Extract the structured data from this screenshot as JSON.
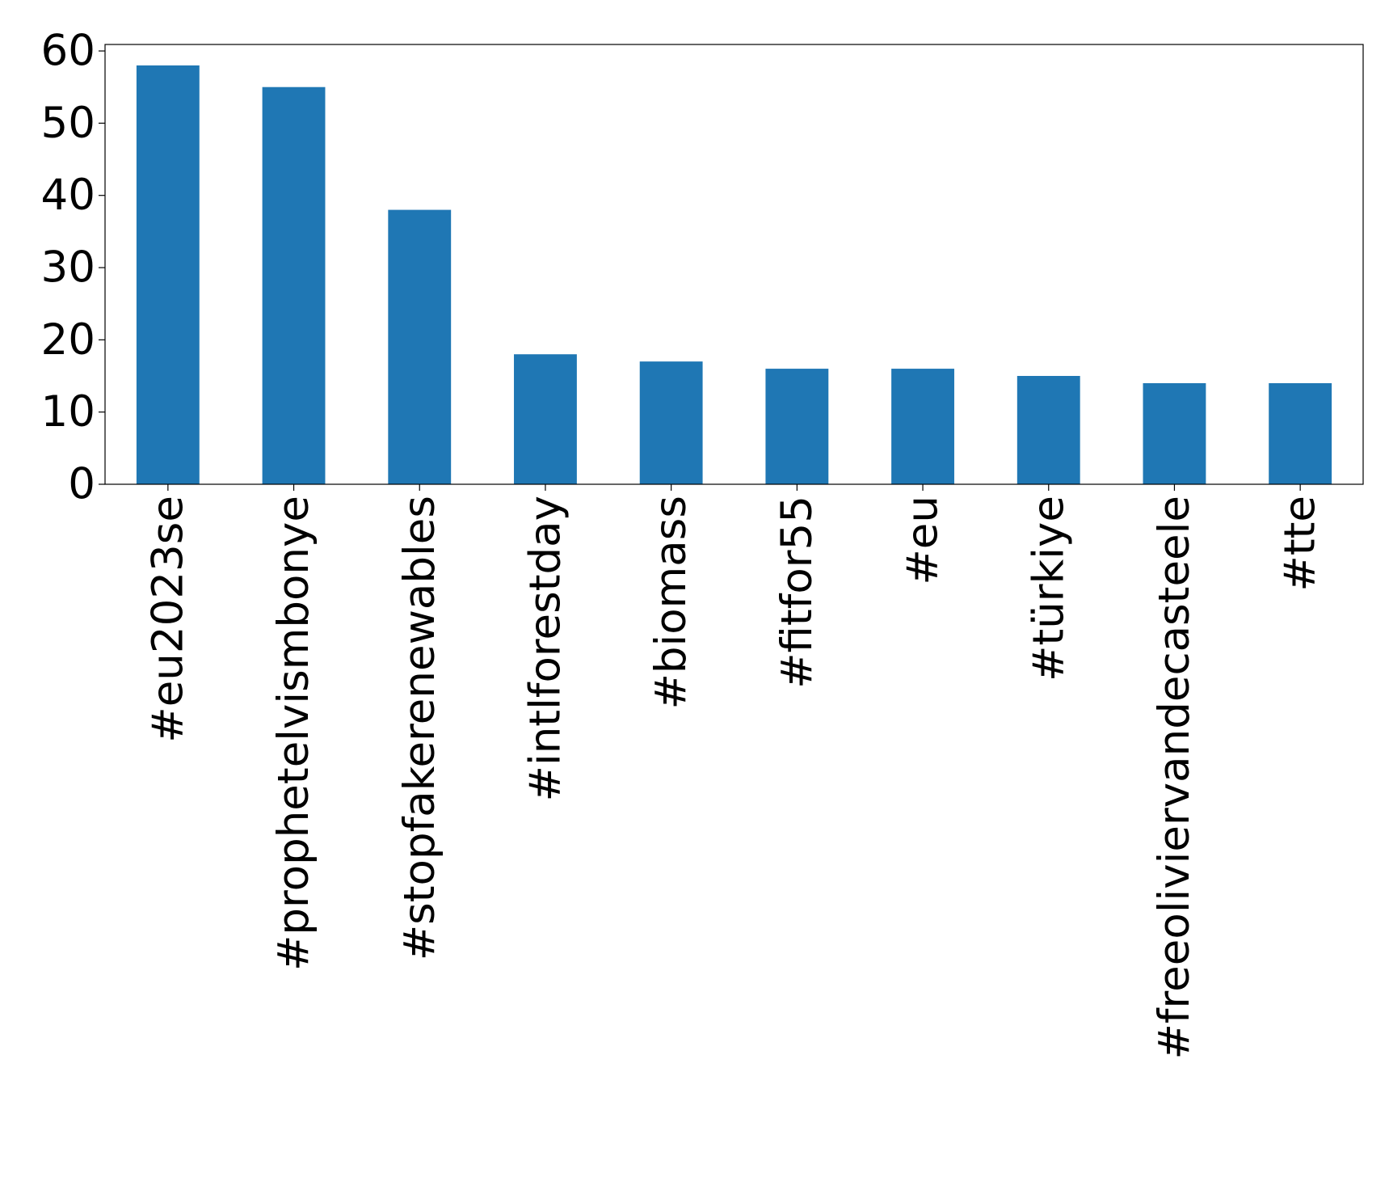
{
  "chart_data": {
    "type": "bar",
    "categories": [
      "#eu2023se",
      "#prophetelvismbonye",
      "#stopfakerenewables",
      "#intlforestday",
      "#biomass",
      "#fitfor55",
      "#eu",
      "#türkiye",
      "#freeoliviervandecasteele",
      "#tte"
    ],
    "values": [
      58,
      55,
      38,
      18,
      17,
      16,
      16,
      15,
      14,
      14
    ],
    "color": "#1f77b4",
    "ylim": [
      0,
      60.9
    ],
    "yticks": [
      0,
      10,
      20,
      30,
      40,
      50,
      60
    ],
    "grid": false
  }
}
